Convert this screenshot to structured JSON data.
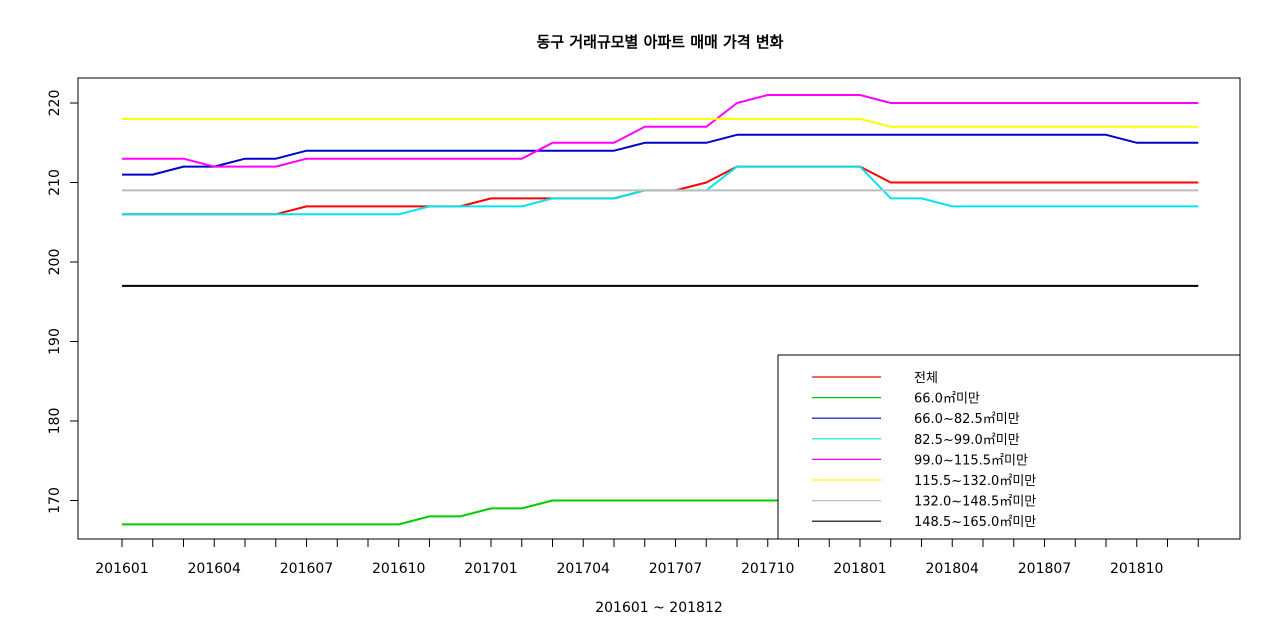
{
  "chart_data": {
    "type": "line",
    "title": "동구 거래규모별 아파트 매매 가격 변화",
    "xlabel": "201601 ~ 201812",
    "ylabel": "",
    "ylim": [
      165,
      222
    ],
    "yticks": [
      170,
      180,
      190,
      200,
      210,
      220
    ],
    "grid": false,
    "legend_position": "bottom-right",
    "x": [
      "201601",
      "201602",
      "201603",
      "201604",
      "201605",
      "201606",
      "201607",
      "201608",
      "201609",
      "201610",
      "201611",
      "201612",
      "201701",
      "201702",
      "201703",
      "201704",
      "201705",
      "201706",
      "201707",
      "201708",
      "201709",
      "201710",
      "201711",
      "201712",
      "201801",
      "201802",
      "201803",
      "201804",
      "201805",
      "201806",
      "201807",
      "201808",
      "201809",
      "201810",
      "201811",
      "201812"
    ],
    "xticklabels": [
      "201601",
      "201604",
      "201607",
      "201610",
      "201701",
      "201704",
      "201707",
      "201710",
      "201801",
      "201804",
      "201807",
      "201810"
    ],
    "series": [
      {
        "name": "전체",
        "color": "#ff0000",
        "values": [
          206,
          206,
          206,
          206,
          206,
          206,
          207,
          207,
          207,
          207,
          207,
          207,
          208,
          208,
          208,
          208,
          208,
          209,
          209,
          210,
          212,
          212,
          212,
          212,
          212,
          210,
          210,
          210,
          210,
          210,
          210,
          210,
          210,
          210,
          210,
          210
        ]
      },
      {
        "name": "66.0㎡미만",
        "color": "#00cc00",
        "values": [
          167,
          167,
          167,
          167,
          167,
          167,
          167,
          167,
          167,
          167,
          168,
          168,
          169,
          169,
          170,
          170,
          170,
          170,
          170,
          170,
          170,
          170,
          170,
          170,
          170,
          170,
          170,
          170,
          170,
          170,
          170,
          170,
          170,
          170,
          170,
          170
        ]
      },
      {
        "name": "66.0~82.5㎡미만",
        "color": "#0000cc",
        "values": [
          211,
          211,
          212,
          212,
          213,
          213,
          214,
          214,
          214,
          214,
          214,
          214,
          214,
          214,
          214,
          214,
          214,
          215,
          215,
          215,
          216,
          216,
          216,
          216,
          216,
          216,
          216,
          216,
          216,
          216,
          216,
          216,
          216,
          215,
          215,
          215
        ]
      },
      {
        "name": "82.5~99.0㎡미만",
        "color": "#00e5ee",
        "values": [
          206,
          206,
          206,
          206,
          206,
          206,
          206,
          206,
          206,
          206,
          207,
          207,
          207,
          207,
          208,
          208,
          208,
          209,
          209,
          209,
          212,
          212,
          212,
          212,
          212,
          208,
          208,
          207,
          207,
          207,
          207,
          207,
          207,
          207,
          207,
          207
        ]
      },
      {
        "name": "99.0~115.5㎡미만",
        "color": "#ff00ff",
        "values": [
          213,
          213,
          213,
          212,
          212,
          212,
          213,
          213,
          213,
          213,
          213,
          213,
          213,
          213,
          215,
          215,
          215,
          217,
          217,
          217,
          220,
          221,
          221,
          221,
          221,
          220,
          220,
          220,
          220,
          220,
          220,
          220,
          220,
          220,
          220,
          220
        ]
      },
      {
        "name": "115.5~132.0㎡미만",
        "color": "#ffff00",
        "values": [
          218,
          218,
          218,
          218,
          218,
          218,
          218,
          218,
          218,
          218,
          218,
          218,
          218,
          218,
          218,
          218,
          218,
          218,
          218,
          218,
          218,
          218,
          218,
          218,
          218,
          217,
          217,
          217,
          217,
          217,
          217,
          217,
          217,
          217,
          217,
          217
        ]
      },
      {
        "name": "132.0~148.5㎡미만",
        "color": "#bebebe",
        "values": [
          209,
          209,
          209,
          209,
          209,
          209,
          209,
          209,
          209,
          209,
          209,
          209,
          209,
          209,
          209,
          209,
          209,
          209,
          209,
          209,
          209,
          209,
          209,
          209,
          209,
          209,
          209,
          209,
          209,
          209,
          209,
          209,
          209,
          209,
          209,
          209
        ]
      },
      {
        "name": "148.5~165.0㎡미만",
        "color": "#000000",
        "values": [
          197,
          197,
          197,
          197,
          197,
          197,
          197,
          197,
          197,
          197,
          197,
          197,
          197,
          197,
          197,
          197,
          197,
          197,
          197,
          197,
          197,
          197,
          197,
          197,
          197,
          197,
          197,
          197,
          197,
          197,
          197,
          197,
          197,
          197,
          197,
          197
        ]
      }
    ]
  }
}
